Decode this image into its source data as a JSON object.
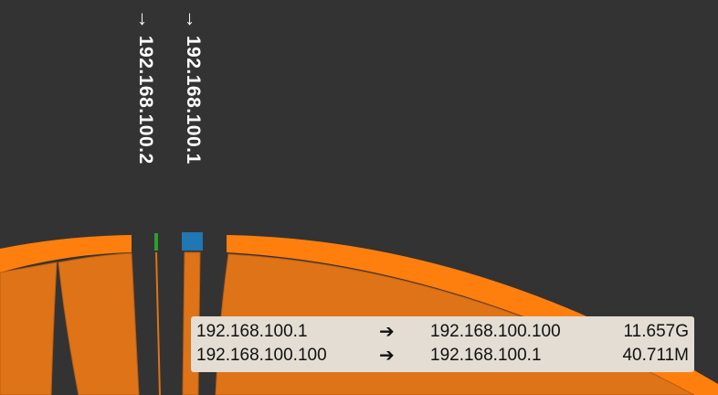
{
  "labels": {
    "host_2": {
      "arrow": "→",
      "text": "192.168.100.2"
    },
    "host_1": {
      "arrow": "→",
      "text": "192.168.100.1"
    }
  },
  "colors": {
    "background": "#333333",
    "arc_orange": "#ff7f0e",
    "ribbon_orange": "#df7317",
    "host_1_blue": "#1f77b4",
    "host_2_green": "#2ca02c",
    "tooltip_bg": "#e3ddd3"
  },
  "tooltip": {
    "rows": [
      {
        "src": "192.168.100.1",
        "arrow": "➔",
        "dst": "192.168.100.100",
        "value": "11.657G"
      },
      {
        "src": "192.168.100.100",
        "arrow": "➔",
        "dst": "192.168.100.1",
        "value": "40.711M"
      }
    ]
  }
}
